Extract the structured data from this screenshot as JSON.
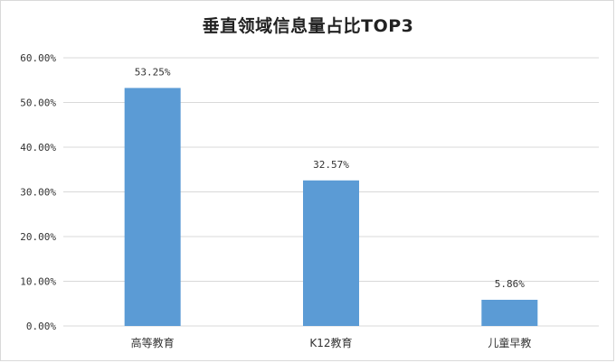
{
  "chart_data": {
    "type": "bar",
    "title": "垂直领域信息量占比TOP3",
    "xlabel": "",
    "ylabel": "",
    "categories": [
      "高等教育",
      "K12教育",
      "儿童早教"
    ],
    "values": [
      53.25,
      32.57,
      5.86
    ],
    "data_labels": [
      "53.25%",
      "32.57%",
      "5.86%"
    ],
    "y_ticks": [
      0,
      10,
      20,
      30,
      40,
      50,
      60
    ],
    "y_tick_labels": [
      "0.00%",
      "10.00%",
      "20.00%",
      "30.00%",
      "40.00%",
      "50.00%",
      "60.00%"
    ],
    "ylim": [
      0,
      60
    ],
    "grid": true,
    "legend": "none",
    "bar_color": "#5b9bd5",
    "grid_color": "#d9d9d9"
  }
}
